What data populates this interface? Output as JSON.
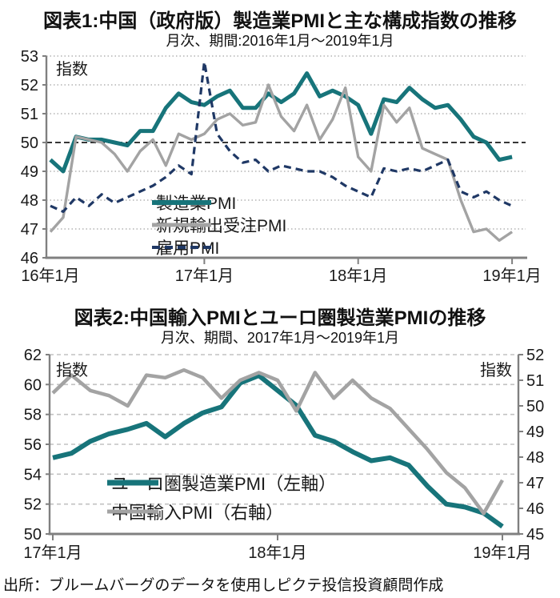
{
  "footer": {
    "source_text": "出所：ブルームバーグのデータを使用しピクテ投信投資顧問作成"
  },
  "colors": {
    "teal": "#17747a",
    "gray": "#a3a3a3",
    "navy": "#1f3865",
    "axis": "#808080",
    "grid_dotted": "#b3b3b3",
    "grid_dashed": "#c2c2c2",
    "baseline_black": "#1a1a1a"
  },
  "chart_data": [
    {
      "id": "chart1",
      "type": "line",
      "title": "図表1:中国（政府版）製造業PMIと主な構成指数の推移",
      "subtitle": "月次、期間:2016年1月～2019年1月",
      "unit_label": "指数",
      "x_period": "2016年1月～2019年1月 (monthly, 37 points)",
      "x_tick_labels": [
        {
          "label": "16年1月",
          "month": 0
        },
        {
          "label": "17年1月",
          "month": 12
        },
        {
          "label": "18年1月",
          "month": 24
        },
        {
          "label": "19年1月",
          "month": 36
        }
      ],
      "ylim": [
        46,
        53
      ],
      "y_ticks": [
        46,
        47,
        48,
        49,
        50,
        51,
        52,
        53
      ],
      "baseline": 50,
      "grid": "dotted horizontal lines at each integer",
      "legend_position": "inside lower-left",
      "series": [
        {
          "name": "製造業PMI",
          "color": "#17747a",
          "style": "solid",
          "width": 5,
          "values": [
            49.4,
            49.0,
            50.2,
            50.1,
            50.1,
            50.0,
            49.9,
            50.4,
            50.4,
            51.2,
            51.7,
            51.4,
            51.3,
            51.6,
            51.8,
            51.2,
            51.2,
            51.7,
            51.4,
            51.7,
            52.4,
            51.6,
            51.8,
            51.6,
            51.3,
            50.3,
            51.5,
            51.4,
            51.9,
            51.5,
            51.2,
            51.3,
            50.8,
            50.2,
            50.0,
            49.4,
            49.5
          ]
        },
        {
          "name": "新規輸出受注PMI",
          "color": "#a3a3a3",
          "style": "solid",
          "width": 3.4,
          "values": [
            46.9,
            47.4,
            50.2,
            50.1,
            50.0,
            49.6,
            49.0,
            49.7,
            50.1,
            49.2,
            50.3,
            50.1,
            50.3,
            50.8,
            51.0,
            50.6,
            50.7,
            52.0,
            50.9,
            50.4,
            51.3,
            50.1,
            50.8,
            51.9,
            49.5,
            49.0,
            51.3,
            50.7,
            51.2,
            49.8,
            49.6,
            49.4,
            48.0,
            46.9,
            47.0,
            46.6,
            46.9
          ]
        },
        {
          "name": "雇用PMI",
          "color": "#1f3865",
          "style": "dashed",
          "width": 3.2,
          "values": [
            47.8,
            47.6,
            48.1,
            47.8,
            48.2,
            47.9,
            48.1,
            48.3,
            48.5,
            48.8,
            49.2,
            48.9,
            52.8,
            50.3,
            49.7,
            49.3,
            49.4,
            49.0,
            49.2,
            49.1,
            49.0,
            49.0,
            48.8,
            48.5,
            48.3,
            48.1,
            49.1,
            49.0,
            49.1,
            49.0,
            49.2,
            49.4,
            48.3,
            48.1,
            48.3,
            48.0,
            47.8
          ]
        }
      ]
    },
    {
      "id": "chart2",
      "type": "line",
      "title": "図表2:中国輸入PMIとユーロ圏製造業PMIの推移",
      "subtitle": "月次、期間、2017年1月～2019年1月",
      "unit_label_left": "指数",
      "unit_label_right": "指数",
      "x_period": "2017年1月～2019年1月 (monthly, 25 points)",
      "x_tick_labels": [
        {
          "label": "17年1月",
          "month": 0
        },
        {
          "label": "18年1月",
          "month": 12
        },
        {
          "label": "19年1月",
          "month": 24
        }
      ],
      "ylim_left": [
        50,
        62
      ],
      "y_ticks_left": [
        50,
        52,
        54,
        56,
        58,
        60,
        62
      ],
      "ylim_right": [
        45,
        52
      ],
      "y_ticks_right": [
        45,
        46,
        47,
        48,
        49,
        50,
        51,
        52
      ],
      "grid": "dashed horizontal lines at even left-axis values",
      "legend_position": "inside lower-left",
      "series": [
        {
          "name": "ユーロ圏製造業PMI（左軸）",
          "axis": "left",
          "color": "#17747a",
          "style": "solid",
          "width": 6,
          "values": [
            55.1,
            55.4,
            56.2,
            56.7,
            57.0,
            57.4,
            56.5,
            57.4,
            58.1,
            58.5,
            60.1,
            60.6,
            59.6,
            58.6,
            56.6,
            56.2,
            55.5,
            54.9,
            55.1,
            54.6,
            53.2,
            52.0,
            51.8,
            51.4,
            50.5
          ]
        },
        {
          "name": "中国輸入PMI（右軸）",
          "axis": "right",
          "color": "#a3a3a3",
          "style": "solid",
          "width": 4.5,
          "values": [
            50.5,
            51.2,
            50.6,
            50.4,
            50.0,
            51.2,
            51.1,
            51.4,
            51.1,
            50.3,
            51.0,
            51.3,
            51.0,
            49.8,
            51.3,
            50.3,
            51.0,
            50.3,
            49.9,
            49.1,
            48.3,
            47.4,
            46.8,
            45.8,
            47.1
          ]
        }
      ]
    }
  ]
}
